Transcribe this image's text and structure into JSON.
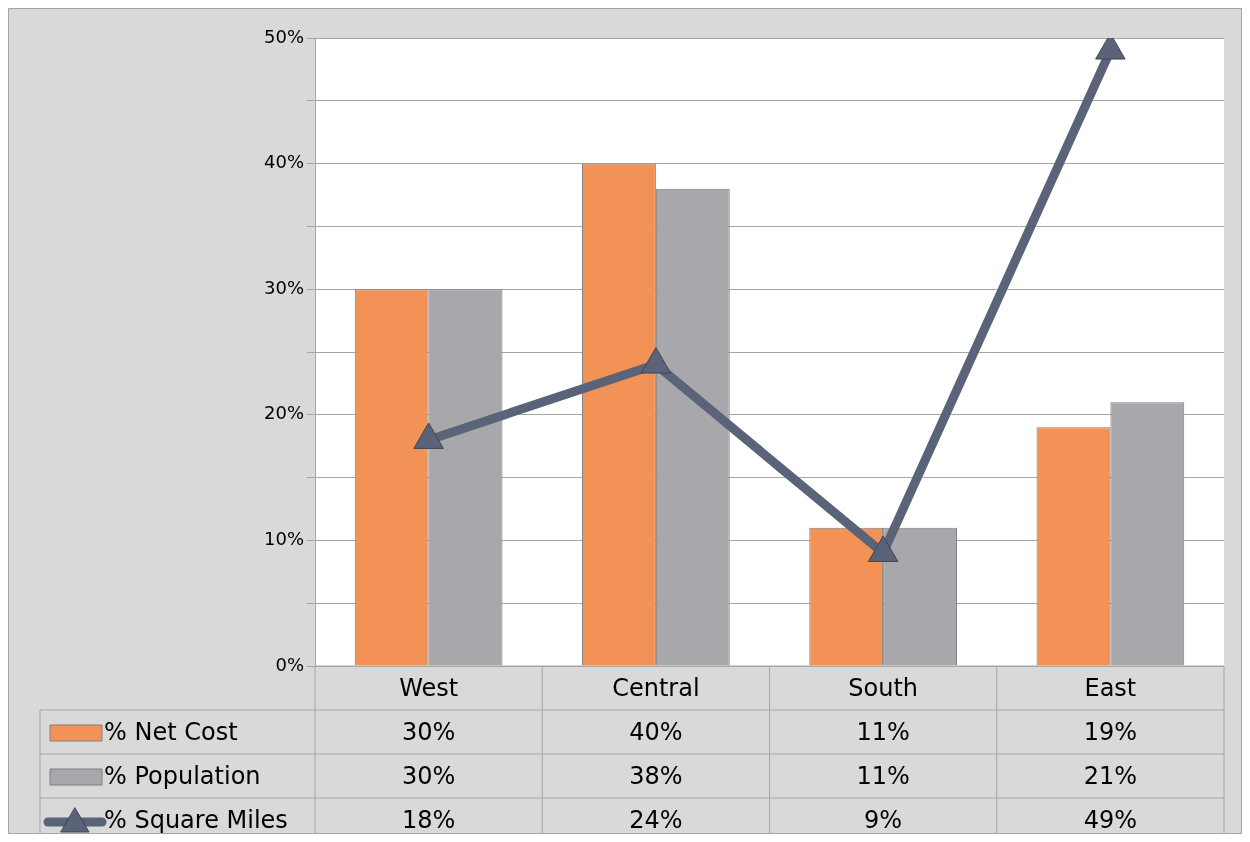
{
  "chart_data": {
    "type": "bar",
    "categories": [
      "West",
      "Central",
      "South",
      "East"
    ],
    "series": [
      {
        "name": "% Net Cost",
        "color": "#f39256",
        "values": [
          30,
          40,
          11,
          19
        ],
        "value_labels": [
          "30%",
          "40%",
          "11%",
          "19%"
        ]
      },
      {
        "name": "% Population",
        "color": "#a7a7ac",
        "values": [
          30,
          38,
          11,
          21
        ],
        "value_labels": [
          "30%",
          "38%",
          "11%",
          "21%"
        ]
      },
      {
        "name": "% Square Miles",
        "type": "line",
        "color": "#5a6378",
        "marker": "triangle",
        "values": [
          18,
          24,
          9,
          49
        ],
        "value_labels": [
          "18%",
          "24%",
          "9%",
          "49%"
        ]
      }
    ],
    "ylim": [
      0,
      50
    ],
    "yticks": [
      {
        "value": 0,
        "label": "0%"
      },
      {
        "value": 5,
        "label": null
      },
      {
        "value": 10,
        "label": "10%"
      },
      {
        "value": 15,
        "label": null
      },
      {
        "value": 20,
        "label": "20%"
      },
      {
        "value": 25,
        "label": null
      },
      {
        "value": 30,
        "label": "30%"
      },
      {
        "value": 35,
        "label": null
      },
      {
        "value": 40,
        "label": "40%"
      },
      {
        "value": 45,
        "label": null
      },
      {
        "value": 50,
        "label": "50%"
      }
    ],
    "grid": "y",
    "legend": "bottom"
  }
}
